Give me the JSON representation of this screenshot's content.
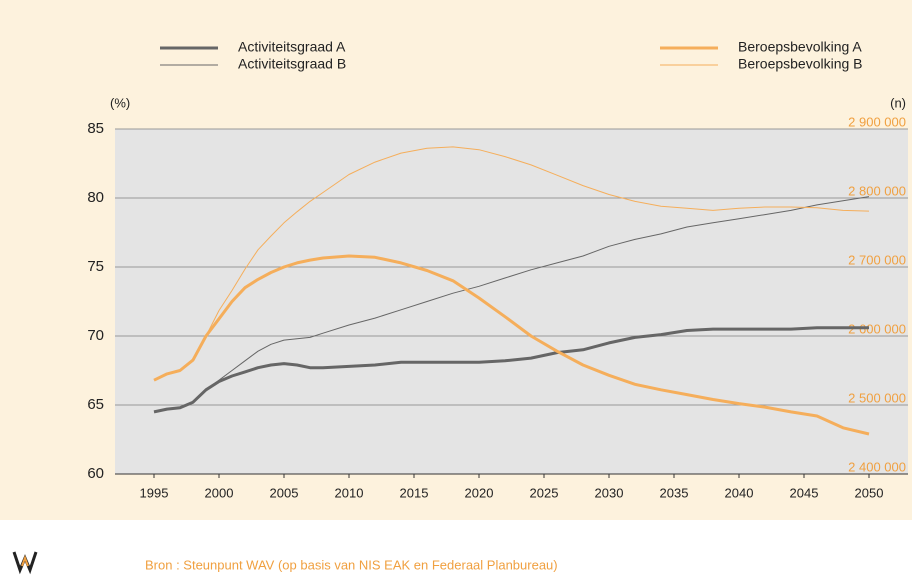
{
  "chart_data": {
    "type": "line",
    "y_label": "(%)",
    "y2_label": "(n)",
    "source": "Bron : Steunpunt WAV (op basis van NIS EAK en Federaal Planbureau)",
    "x": [
      1995,
      1996,
      1997,
      1998,
      1999,
      2000,
      2001,
      2002,
      2003,
      2004,
      2005,
      2006,
      2007,
      2008,
      2010,
      2012,
      2014,
      2016,
      2018,
      2020,
      2022,
      2024,
      2026,
      2028,
      2030,
      2032,
      2034,
      2036,
      2038,
      2040,
      2042,
      2044,
      2046,
      2048,
      2050
    ],
    "xlim": [
      1992,
      2053
    ],
    "xticks": [
      1995,
      2000,
      2005,
      2010,
      2015,
      2020,
      2025,
      2030,
      2035,
      2040,
      2045,
      2050
    ],
    "ylim": [
      60,
      85
    ],
    "yticks": [
      60,
      65,
      70,
      75,
      80,
      85
    ],
    "y2lim": [
      2400000,
      2900000
    ],
    "y2ticks": [
      {
        "value": 2400000,
        "label": "2 400 000"
      },
      {
        "value": 2500000,
        "label": "2 500 000"
      },
      {
        "value": 2600000,
        "label": "2 600 000"
      },
      {
        "value": 2700000,
        "label": "2 700 000"
      },
      {
        "value": 2800000,
        "label": "2 800 000"
      },
      {
        "value": 2900000,
        "label": "2 900 000"
      }
    ],
    "grid": true,
    "series": [
      {
        "name": "Activiteitsgraad A",
        "color": "#666666",
        "width": 3,
        "values": [
          64.5,
          64.7,
          64.8,
          65.2,
          66.1,
          66.7,
          67.1,
          67.4,
          67.7,
          67.9,
          68.0,
          67.9,
          67.7,
          67.7,
          67.8,
          67.9,
          68.1,
          68.1,
          68.1,
          68.1,
          68.2,
          68.4,
          68.8,
          69.0,
          69.5,
          69.9,
          70.1,
          70.4,
          70.5,
          70.5,
          70.5,
          70.5,
          70.6,
          70.6,
          70.6
        ]
      },
      {
        "name": "Activiteitsgraad B",
        "color": "#666666",
        "width": 1,
        "values": [
          64.5,
          64.7,
          64.8,
          65.2,
          66.1,
          66.8,
          67.5,
          68.2,
          68.9,
          69.4,
          69.7,
          69.8,
          69.9,
          70.2,
          70.8,
          71.3,
          71.9,
          72.5,
          73.1,
          73.6,
          74.2,
          74.8,
          75.3,
          75.8,
          76.5,
          77.0,
          77.4,
          77.9,
          78.2,
          78.5,
          78.8,
          79.1,
          79.5,
          79.8,
          80.1
        ]
      },
      {
        "name": "Beroepsbevolking A",
        "color": "#f5ae5b",
        "width": 3,
        "axis": "y2",
        "values": [
          2536000,
          2545000,
          2550000,
          2565000,
          2600000,
          2625000,
          2650000,
          2670000,
          2682000,
          2692000,
          2700000,
          2706000,
          2710000,
          2713000,
          2716000,
          2714000,
          2706000,
          2695000,
          2680000,
          2655000,
          2628000,
          2600000,
          2578000,
          2558000,
          2543000,
          2530000,
          2522000,
          2515000,
          2508000,
          2502000,
          2497000,
          2490000,
          2484000,
          2467000,
          2458000
        ]
      },
      {
        "name": "Beroepsbevolking B",
        "color": "#f5ae5b",
        "width": 1,
        "axis": "y2",
        "values": [
          2536000,
          2545000,
          2550000,
          2565000,
          2600000,
          2637000,
          2666000,
          2697000,
          2725000,
          2745000,
          2764000,
          2780000,
          2795000,
          2808000,
          2834000,
          2852000,
          2865000,
          2872000,
          2874000,
          2870000,
          2860000,
          2848000,
          2833000,
          2818000,
          2805000,
          2795000,
          2788000,
          2785000,
          2782000,
          2785000,
          2787000,
          2787000,
          2786000,
          2782000,
          2781000
        ]
      }
    ]
  }
}
